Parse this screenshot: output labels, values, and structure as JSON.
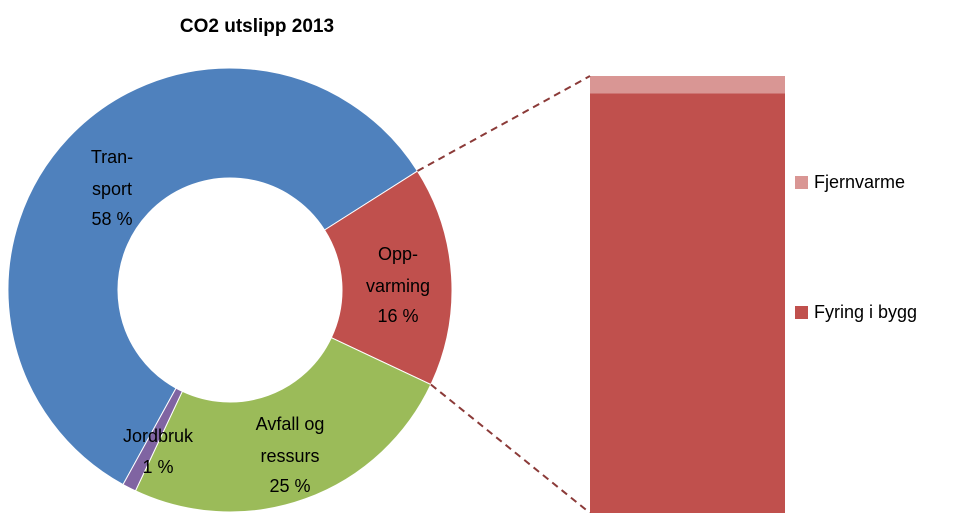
{
  "chart_data": [
    {
      "type": "pie",
      "title": "CO2 utslipp 2013",
      "categories": [
        "Tran-\nsport",
        "Opp-\nvarming",
        "Avfall og\nressurs",
        "Jordbruk"
      ],
      "values": [
        58,
        16,
        25,
        1
      ],
      "value_labels": [
        "58 %",
        "16 %",
        "25 %",
        "1 %"
      ],
      "colors": [
        "#4f81bd",
        "#c0504d",
        "#9bbb59",
        "#8064a2"
      ]
    },
    {
      "type": "bar",
      "stacked": true,
      "series": [
        {
          "name": "Fjernvarme",
          "color": "#d99694",
          "values": [
            4
          ]
        },
        {
          "name": "Fyring i bygg",
          "color": "#c0504d",
          "values": [
            96
          ]
        }
      ]
    }
  ]
}
